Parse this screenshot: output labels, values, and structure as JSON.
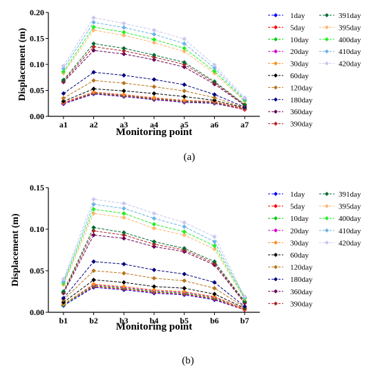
{
  "chart_data": [
    {
      "type": "line",
      "panel_label": "(a)",
      "xlabel": "Monitoring point",
      "ylabel": "Displacement (m)",
      "categories": [
        "a1",
        "a2",
        "a3",
        "a4",
        "a5",
        "a6",
        "a7"
      ],
      "ylim": [
        0,
        0.2
      ],
      "yticks": [
        "0.00",
        "0.05",
        "0.10",
        "0.15",
        "0.20"
      ],
      "grid": false,
      "legend": "right",
      "series": [
        {
          "name": "1day",
          "color": "#0000ff",
          "values": [
            0.024,
            0.043,
            0.038,
            0.032,
            0.027,
            0.025,
            0.013
          ]
        },
        {
          "name": "5day",
          "color": "#ff0000",
          "values": [
            0.025,
            0.044,
            0.039,
            0.033,
            0.028,
            0.026,
            0.013
          ]
        },
        {
          "name": "10day",
          "color": "#00cc00",
          "values": [
            0.026,
            0.045,
            0.04,
            0.034,
            0.029,
            0.027,
            0.014
          ]
        },
        {
          "name": "20day",
          "color": "#cc00cc",
          "values": [
            0.026,
            0.046,
            0.041,
            0.035,
            0.03,
            0.028,
            0.014
          ]
        },
        {
          "name": "30day",
          "color": "#ff8c1a",
          "values": [
            0.027,
            0.047,
            0.042,
            0.036,
            0.031,
            0.029,
            0.015
          ]
        },
        {
          "name": "60day",
          "color": "#000000",
          "values": [
            0.029,
            0.053,
            0.049,
            0.044,
            0.038,
            0.031,
            0.016
          ]
        },
        {
          "name": "120day",
          "color": "#b8741a",
          "values": [
            0.035,
            0.069,
            0.064,
            0.057,
            0.049,
            0.036,
            0.017
          ]
        },
        {
          "name": "180day",
          "color": "#000080",
          "values": [
            0.044,
            0.085,
            0.079,
            0.071,
            0.061,
            0.042,
            0.018
          ]
        },
        {
          "name": "360day",
          "color": "#6b0057",
          "values": [
            0.066,
            0.127,
            0.12,
            0.109,
            0.095,
            0.062,
            0.021
          ]
        },
        {
          "name": "390day",
          "color": "#b22222",
          "values": [
            0.068,
            0.134,
            0.126,
            0.114,
            0.1,
            0.065,
            0.022
          ]
        },
        {
          "name": "391day",
          "color": "#006b33",
          "values": [
            0.07,
            0.14,
            0.131,
            0.118,
            0.104,
            0.067,
            0.023
          ]
        },
        {
          "name": "395day",
          "color": "#ffb870",
          "values": [
            0.083,
            0.166,
            0.156,
            0.142,
            0.125,
            0.083,
            0.029
          ]
        },
        {
          "name": "400day",
          "color": "#22ee22",
          "values": [
            0.086,
            0.172,
            0.162,
            0.148,
            0.131,
            0.087,
            0.031
          ]
        },
        {
          "name": "410day",
          "color": "#6cb4e8",
          "values": [
            0.092,
            0.181,
            0.171,
            0.158,
            0.14,
            0.093,
            0.033
          ]
        },
        {
          "name": "420day",
          "color": "#c8c8f0",
          "values": [
            0.097,
            0.19,
            0.179,
            0.166,
            0.149,
            0.099,
            0.036
          ]
        }
      ]
    },
    {
      "type": "line",
      "panel_label": "(b)",
      "xlabel": "Monitoring point",
      "ylabel": "Displacement (m)",
      "categories": [
        "b1",
        "b2",
        "b3",
        "b4",
        "b5",
        "b6",
        "b7"
      ],
      "ylim": [
        0,
        0.15
      ],
      "yticks": [
        "0.00",
        "0.05",
        "0.10",
        "0.15"
      ],
      "grid": false,
      "legend": "right",
      "series": [
        {
          "name": "1day",
          "color": "#0000ff",
          "values": [
            0.008,
            0.03,
            0.027,
            0.023,
            0.021,
            0.015,
            0.003
          ]
        },
        {
          "name": "5day",
          "color": "#ff0000",
          "values": [
            0.009,
            0.031,
            0.028,
            0.024,
            0.022,
            0.016,
            0.003
          ]
        },
        {
          "name": "10day",
          "color": "#00cc00",
          "values": [
            0.009,
            0.032,
            0.029,
            0.025,
            0.023,
            0.017,
            0.004
          ]
        },
        {
          "name": "20day",
          "color": "#cc00cc",
          "values": [
            0.01,
            0.033,
            0.03,
            0.026,
            0.024,
            0.018,
            0.004
          ]
        },
        {
          "name": "30day",
          "color": "#ff8c1a",
          "values": [
            0.01,
            0.034,
            0.031,
            0.027,
            0.025,
            0.019,
            0.004
          ]
        },
        {
          "name": "60day",
          "color": "#000000",
          "values": [
            0.012,
            0.039,
            0.036,
            0.031,
            0.029,
            0.022,
            0.005
          ]
        },
        {
          "name": "120day",
          "color": "#b8741a",
          "values": [
            0.015,
            0.05,
            0.047,
            0.041,
            0.038,
            0.029,
            0.006
          ]
        },
        {
          "name": "180day",
          "color": "#000080",
          "values": [
            0.017,
            0.061,
            0.058,
            0.051,
            0.046,
            0.036,
            0.007
          ]
        },
        {
          "name": "360day",
          "color": "#6b0057",
          "values": [
            0.023,
            0.093,
            0.089,
            0.079,
            0.073,
            0.057,
            0.011
          ]
        },
        {
          "name": "390day",
          "color": "#b22222",
          "values": [
            0.024,
            0.098,
            0.093,
            0.082,
            0.075,
            0.059,
            0.012
          ]
        },
        {
          "name": "391day",
          "color": "#006b33",
          "values": [
            0.025,
            0.102,
            0.096,
            0.085,
            0.077,
            0.061,
            0.013
          ]
        },
        {
          "name": "395day",
          "color": "#ffb870",
          "values": [
            0.033,
            0.119,
            0.114,
            0.101,
            0.093,
            0.076,
            0.016
          ]
        },
        {
          "name": "400day",
          "color": "#22ee22",
          "values": [
            0.035,
            0.124,
            0.119,
            0.106,
            0.097,
            0.08,
            0.017
          ]
        },
        {
          "name": "410day",
          "color": "#6cb4e8",
          "values": [
            0.037,
            0.13,
            0.125,
            0.113,
            0.103,
            0.085,
            0.018
          ]
        },
        {
          "name": "420day",
          "color": "#c8c8f0",
          "values": [
            0.04,
            0.136,
            0.131,
            0.119,
            0.108,
            0.091,
            0.019
          ]
        }
      ]
    }
  ]
}
